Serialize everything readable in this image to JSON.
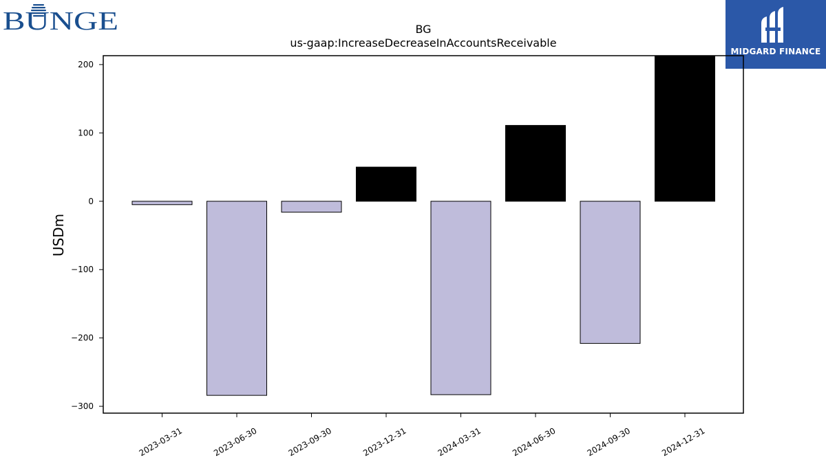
{
  "logos": {
    "left_brand": "BUNGE",
    "right_brand": "MIDGARD FINANCE"
  },
  "colors": {
    "negative_bar": "#bfbcdb",
    "positive_bar": "#000000",
    "bunge_blue": "#1a4f8f",
    "midgard_blue": "#2b58a8"
  },
  "chart_data": {
    "type": "bar",
    "title": "BG",
    "subtitle": "us-gaap:IncreaseDecreaseInAccountsReceivable",
    "xlabel": "",
    "ylabel": "USDm",
    "categories": [
      "2023-03-31",
      "2023-06-30",
      "2023-09-30",
      "2023-12-31",
      "2024-03-31",
      "2024-06-30",
      "2024-09-30",
      "2024-12-31"
    ],
    "values": [
      -5,
      -284,
      -16,
      50,
      -283,
      111,
      -208,
      213
    ],
    "ylim": [
      -310,
      213
    ],
    "yticks": [
      200,
      100,
      0,
      -100,
      -200,
      -300
    ],
    "ytick_labels": [
      "200",
      "100",
      "0",
      "−100",
      "−200",
      "−300"
    ],
    "grid": false,
    "legend": "none"
  }
}
